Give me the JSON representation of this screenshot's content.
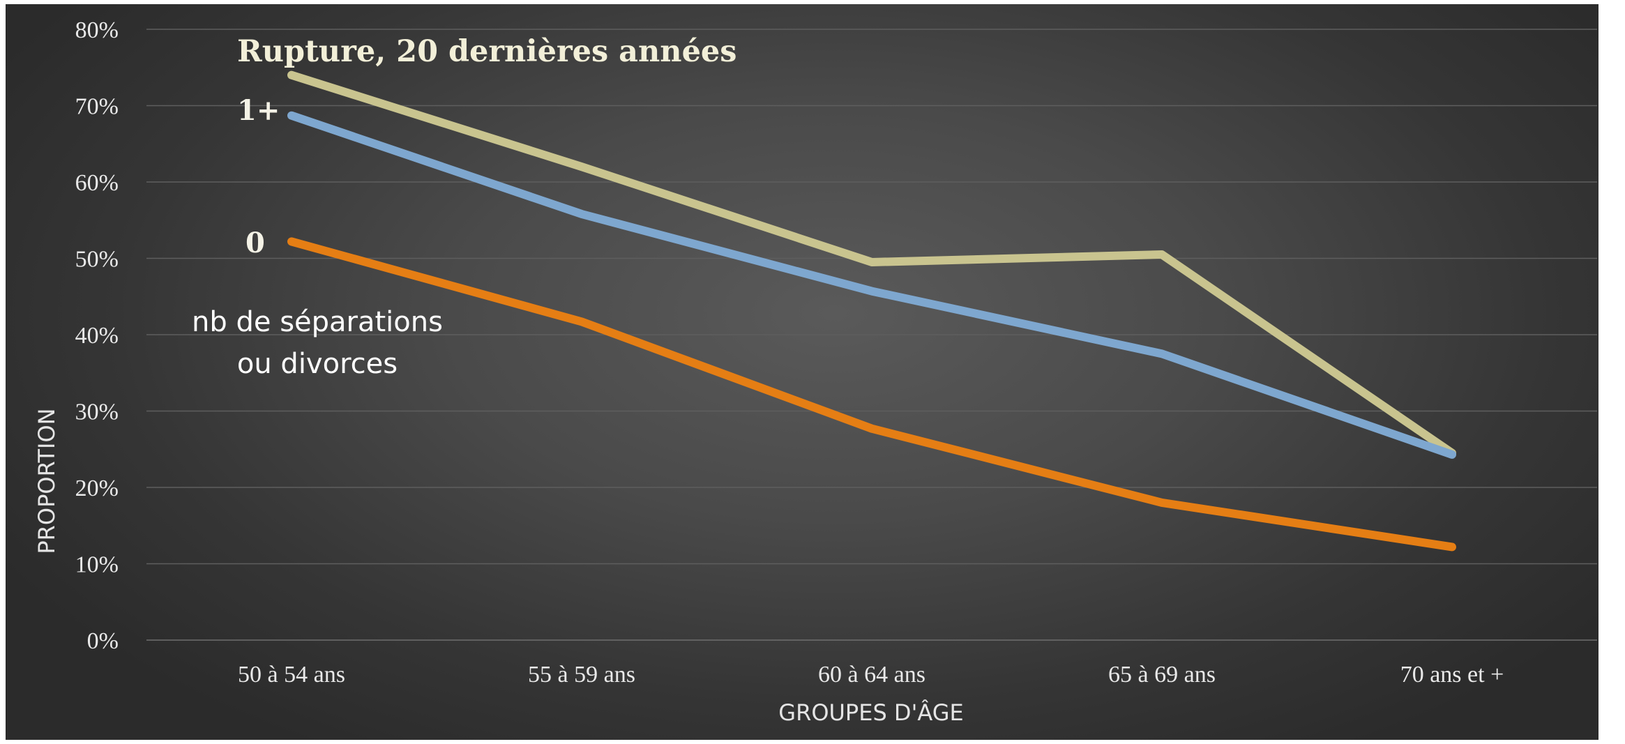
{
  "chart_data": {
    "type": "line",
    "title": "Rupture, 20 dernières années",
    "xlabel": "GROUPES D'ÂGE",
    "ylabel": "PROPORTION",
    "categories": [
      "50 à 54 ans",
      "55 à 59 ans",
      "60 à 64 ans",
      "65 à 69 ans",
      "70 ans et +"
    ],
    "ylim": [
      0,
      80
    ],
    "yticks": [
      "0%",
      "10%",
      "20%",
      "30%",
      "40%",
      "50%",
      "60%",
      "70%",
      "80%"
    ],
    "grid": true,
    "series": [
      {
        "name": "",
        "color": "#c9c48f",
        "values": [
          74,
          62,
          49.5,
          50.5,
          24.5
        ]
      },
      {
        "name": "1+",
        "color": "#7ea7cf",
        "values": [
          68.7,
          55.8,
          45.7,
          37.5,
          24.3
        ]
      },
      {
        "name": "0",
        "color": "#e57e14",
        "values": [
          52.2,
          41.7,
          27.7,
          18,
          12.2
        ]
      }
    ],
    "annotations": {
      "note_line1": "nb de séparations",
      "note_line2": "ou divorces"
    }
  }
}
